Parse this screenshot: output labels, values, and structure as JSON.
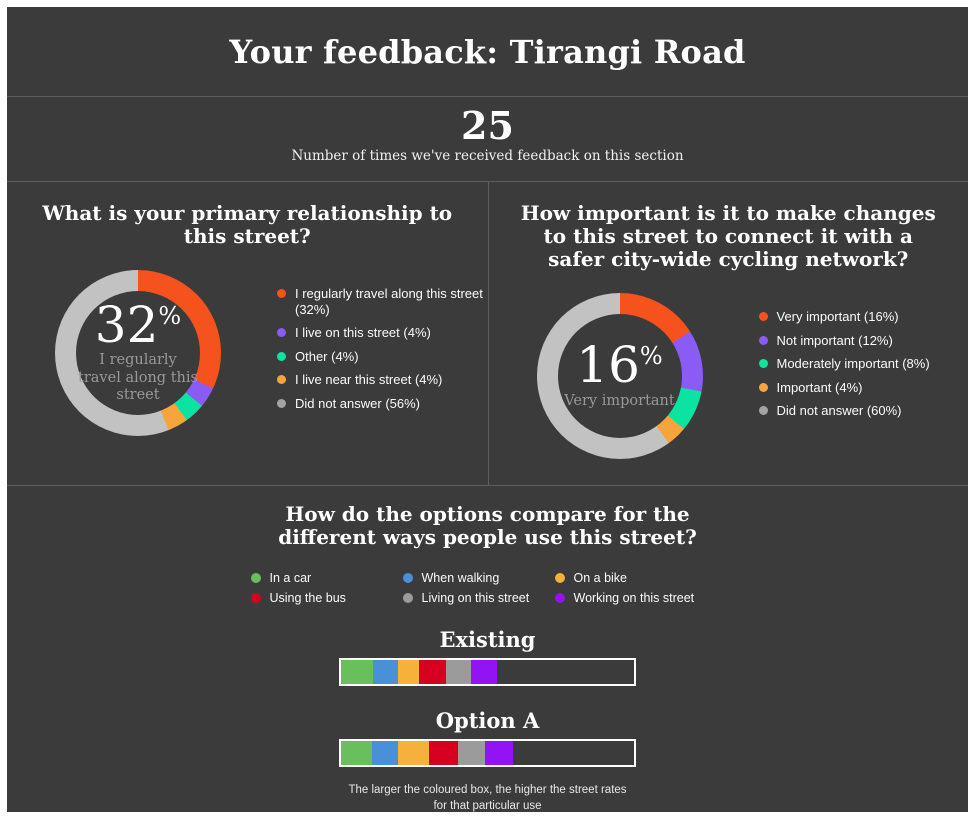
{
  "header": {
    "title": "Your feedback: Tirangi Road"
  },
  "stat": {
    "value": "25",
    "label": "Number of times we've received feedback on this section"
  },
  "chart_data": [
    {
      "type": "donut",
      "title": "What is your primary relationship to this street?",
      "center": {
        "value": "32",
        "unit": "%",
        "label": "I regularly travel along this street"
      },
      "categories": [
        "I regularly travel along this street",
        "I live on this street",
        "Other",
        "I live near this street",
        "Did not answer"
      ],
      "values": [
        32,
        4,
        4,
        4,
        56
      ],
      "colors": [
        "#f5521d",
        "#8a5cf5",
        "#0be4a1",
        "#f7a43c",
        "#c2c2c2"
      ],
      "legend": [
        {
          "label": "I regularly travel along this street (32%)",
          "color": "#f5521d"
        },
        {
          "label": "I live on this street (4%)",
          "color": "#8a5cf5"
        },
        {
          "label": "Other (4%)",
          "color": "#0be4a1"
        },
        {
          "label": "I live near this street (4%)",
          "color": "#f7a43c"
        },
        {
          "label": "Did not answer (56%)",
          "color": "#a3a3a3"
        }
      ],
      "legend_position": "right"
    },
    {
      "type": "donut",
      "title": "How important is it to make changes to this street to connect it with a safer city-wide cycling network?",
      "center": {
        "value": "16",
        "unit": "%",
        "label": "Very important"
      },
      "categories": [
        "Very important",
        "Not important",
        "Moderately important",
        "Important",
        "Did not answer"
      ],
      "values": [
        16,
        12,
        8,
        4,
        60
      ],
      "colors": [
        "#f5521d",
        "#8a5cf5",
        "#0be4a1",
        "#f7a43c",
        "#c2c2c2"
      ],
      "legend": [
        {
          "label": "Very important (16%)",
          "color": "#f5521d"
        },
        {
          "label": "Not important (12%)",
          "color": "#8a5cf5"
        },
        {
          "label": "Moderately important (8%)",
          "color": "#0be4a1"
        },
        {
          "label": "Important (4%)",
          "color": "#f7a43c"
        },
        {
          "label": "Did not answer (60%)",
          "color": "#a3a3a3"
        }
      ],
      "legend_position": "right"
    },
    {
      "type": "bar",
      "title": "How do the options compare for the different ways people use this street?",
      "legend": [
        {
          "label": "In a car",
          "color": "#68bf5b"
        },
        {
          "label": "When walking",
          "color": "#4a90d9"
        },
        {
          "label": "On a bike",
          "color": "#f6b13c"
        },
        {
          "label": "Using the bus",
          "color": "#d60120"
        },
        {
          "label": "Living on this street",
          "color": "#9b9b9b"
        },
        {
          "label": "Working on this street",
          "color": "#9213f3"
        }
      ],
      "series": [
        {
          "name": "Existing",
          "segments": [
            {
              "category": "In a car",
              "color": "#68bf5b",
              "width_pct": 10.8
            },
            {
              "category": "When walking",
              "color": "#4a90d9",
              "width_pct": 8.5
            },
            {
              "category": "On a bike",
              "color": "#f6b13c",
              "width_pct": 7.4
            },
            {
              "category": "Using the bus",
              "color": "#d60120",
              "width_pct": 9.3
            },
            {
              "category": "Living on this street",
              "color": "#9b9b9b",
              "width_pct": 8.3
            },
            {
              "category": "Working on this street",
              "color": "#9213f3",
              "width_pct": 9.1
            }
          ]
        },
        {
          "name": "Option A",
          "segments": [
            {
              "category": "In a car",
              "color": "#68bf5b",
              "width_pct": 10.5
            },
            {
              "category": "When walking",
              "color": "#4a90d9",
              "width_pct": 9.1
            },
            {
              "category": "On a bike",
              "color": "#f6b13c",
              "width_pct": 10.6
            },
            {
              "category": "Using the bus",
              "color": "#d60120",
              "width_pct": 9.7
            },
            {
              "category": "Living on this street",
              "color": "#9b9b9b",
              "width_pct": 9.1
            },
            {
              "category": "Working on this street",
              "color": "#9213f3",
              "width_pct": 9.7
            }
          ]
        }
      ],
      "footnote": "The larger the coloured box, the higher the street rates for that particular use"
    }
  ],
  "ui_colors": {
    "panel_background": "#3b3b3b",
    "divider": "#5e5e5e",
    "text": "#ffffff",
    "muted_text": "#999999"
  }
}
